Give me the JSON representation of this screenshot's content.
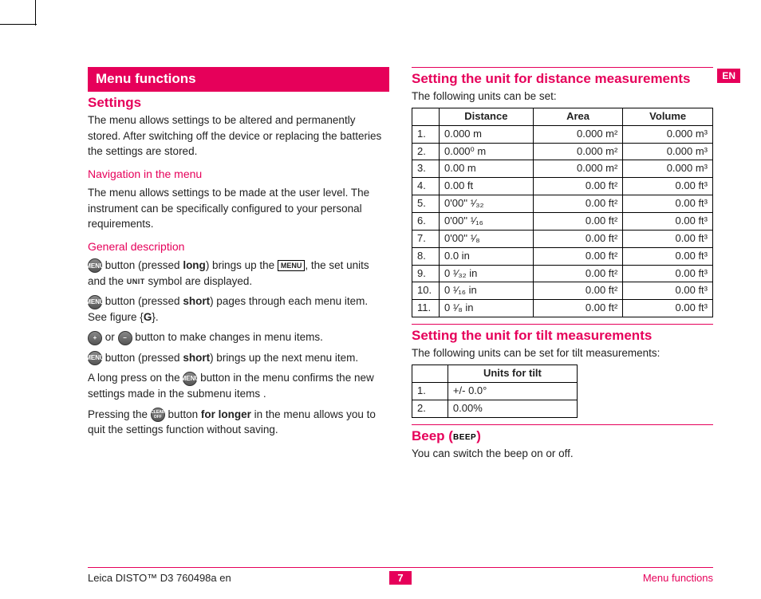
{
  "crop_marks": true,
  "lang_tab": "EN",
  "section_bar": "Menu functions",
  "left": {
    "h_settings": "Settings",
    "p_settings": "The menu allows settings to be altered and permanently stored. After switching off the device or replacing the batteries the settings are stored.",
    "h_nav": "Navigation in the menu",
    "p_nav": "The menu allows settings to be made at the user level. The instrument can be specifically configured to your personal requirements.",
    "h_gen": "General description",
    "gen1_a": " button (pressed ",
    "gen1_b": "long",
    "gen1_c": ") brings up the ",
    "gen1_d": ", the set units and the ",
    "gen1_e": " symbol are displayed.",
    "label_menu": "MENU",
    "label_unit": "UNIT",
    "gen2_a": " button (pressed ",
    "gen2_b": "short",
    "gen2_c": ") pages through each menu item. See figure {",
    "gen2_d": "G",
    "gen2_e": "}.",
    "gen3_a": " or ",
    "gen3_b": " button to make changes in menu items.",
    "gen4_a": " button (pressed ",
    "gen4_b": "short",
    "gen4_c": ") brings up the next menu item.",
    "gen5_a": "A long press on the ",
    "gen5_b": " button in the menu confirms the new settings made in the submenu items .",
    "gen6_a": "Pressing the ",
    "gen6_b": " button ",
    "gen6_c": "for longer",
    "gen6_d": " in the menu allows you to quit the settings function without saving.",
    "btn_menu": "MENU",
    "btn_plus": "+",
    "btn_minus": "−",
    "btn_clear": "CLEAR OFF"
  },
  "right": {
    "h_dist": "Setting the unit for distance measurements",
    "p_dist": "The following units can  be set:",
    "units_header": {
      "dist": "Distance",
      "area": "Area",
      "vol": "Volume"
    },
    "units_rows": [
      {
        "n": "1.",
        "d": "0.000 m",
        "a": "0.000 m²",
        "v": "0.000 m³"
      },
      {
        "n": "2.",
        "d": "0.000⁰ m",
        "a": "0.000 m²",
        "v": "0.000 m³"
      },
      {
        "n": "3.",
        "d": "0.00 m",
        "a": "0.000 m²",
        "v": "0.000 m³"
      },
      {
        "n": "4.",
        "d": "0.00 ft",
        "a": "0.00 ft²",
        "v": "0.00 ft³"
      },
      {
        "n": "5.",
        "d": "0'00'' ¹⁄₃₂",
        "a": "0.00 ft²",
        "v": "0.00 ft³"
      },
      {
        "n": "6.",
        "d": "0'00'' ¹⁄₁₆",
        "a": "0.00 ft²",
        "v": "0.00 ft³"
      },
      {
        "n": "7.",
        "d": "0'00'' ¹⁄₈",
        "a": "0.00 ft²",
        "v": "0.00 ft³"
      },
      {
        "n": "8.",
        "d": "0.0 in",
        "a": "0.00 ft²",
        "v": "0.00 ft³"
      },
      {
        "n": "9.",
        "d": "0 ¹⁄₃₂ in",
        "a": "0.00 ft²",
        "v": "0.00 ft³"
      },
      {
        "n": "10.",
        "d": "0 ¹⁄₁₆ in",
        "a": "0.00 ft²",
        "v": "0.00 ft³"
      },
      {
        "n": "11.",
        "d": "0 ¹⁄₈ in",
        "a": "0.00 ft²",
        "v": "0.00 ft³"
      }
    ],
    "h_tilt": "Setting the unit for tilt measurements",
    "p_tilt": "The following units can be set for tilt measurements:",
    "tilt_header": "Units for tilt",
    "tilt_rows": [
      {
        "n": "1.",
        "v": "+/- 0.0°"
      },
      {
        "n": "2.",
        "v": "0.00%"
      }
    ],
    "h_beep_a": "Beep (",
    "h_beep_label": "BEEP",
    "h_beep_b": ")",
    "p_beep": "You can switch the beep on or off."
  },
  "footer": {
    "left": "Leica DISTO™ D3 760498a en",
    "page": "7",
    "right": "Menu functions"
  }
}
